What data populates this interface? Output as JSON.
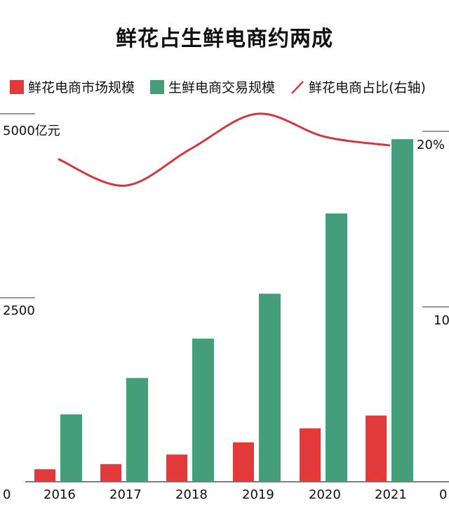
{
  "title": "鲜花占生鲜电商约两成",
  "legend": [
    {
      "label": "鲜花电商市场规模",
      "type": "bar",
      "color": "#e23a3a"
    },
    {
      "label": "生鲜电商交易规模",
      "type": "bar",
      "color": "#449e7a"
    },
    {
      "label": "鲜花电商占比(右轴)",
      "type": "line",
      "color": "#d0393f"
    }
  ],
  "axes": {
    "left_ticks": [
      "5000亿元",
      "2500",
      "0"
    ],
    "right_ticks": [
      "20%",
      "10",
      "0"
    ]
  },
  "chart_data": {
    "type": "bar",
    "title": "鲜花占生鲜电商约两成",
    "categories": [
      "2016",
      "2017",
      "2018",
      "2019",
      "2020",
      "2021"
    ],
    "series": [
      {
        "name": "鲜花电商市场规模",
        "axis": "left",
        "type": "bar",
        "color": "#e23a3a",
        "values": [
          170,
          240,
          370,
          535,
          725,
          900
        ]
      },
      {
        "name": "生鲜电商交易规模",
        "axis": "left",
        "type": "bar",
        "color": "#449e7a",
        "values": [
          915,
          1410,
          1945,
          2555,
          3645,
          4655
        ]
      },
      {
        "name": "鲜花电商占比(右轴)",
        "axis": "right",
        "type": "line",
        "color": "#d0393f",
        "values": [
          18.4,
          16.9,
          19.0,
          21.0,
          19.7,
          19.2
        ]
      }
    ],
    "ylabel_left": "亿元",
    "ylabel_right": "%",
    "ylim_left": [
      0,
      5000
    ],
    "ylim_right": [
      0,
      20
    ],
    "yticks_left": [
      0,
      2500,
      5000
    ],
    "yticks_right": [
      0,
      10,
      20
    ],
    "legend_position": "top",
    "grid": false
  }
}
